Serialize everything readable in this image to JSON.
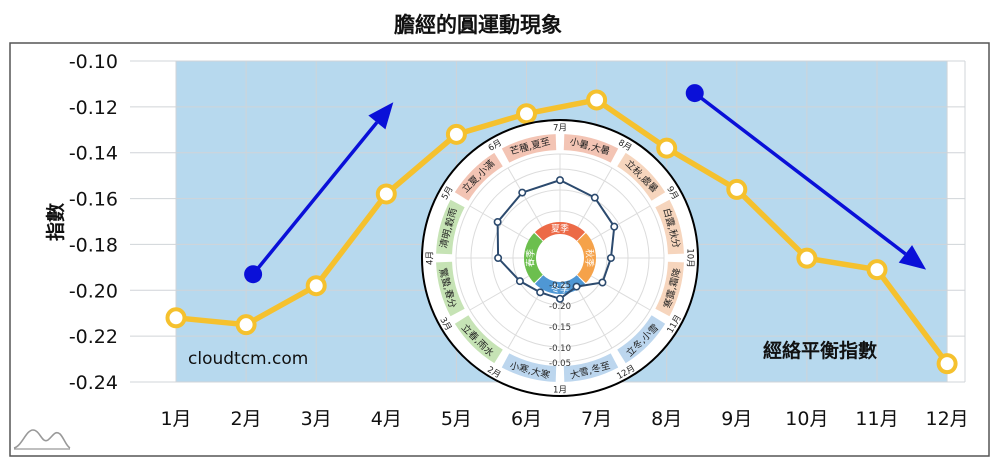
{
  "chart_data": {
    "type": "line",
    "title": "膽經的圓運動現象",
    "ylabel": "指數",
    "xlabel": "",
    "categories": [
      "1月",
      "2月",
      "3月",
      "4月",
      "5月",
      "6月",
      "7月",
      "8月",
      "9月",
      "10月",
      "11月",
      "12月"
    ],
    "ylim": [
      -0.24,
      -0.1
    ],
    "yticks": [
      -0.1,
      -0.12,
      -0.14,
      -0.16,
      -0.18,
      -0.2,
      -0.22,
      -0.24
    ],
    "ytick_labels": [
      "-0.10",
      "-0.12",
      "-0.14",
      "-0.16",
      "-0.18",
      "-0.20",
      "-0.22",
      "-0.24"
    ],
    "grid": true,
    "series": [
      {
        "name": "",
        "color": "#f5c12e",
        "values": [
          -0.212,
          -0.215,
          -0.198,
          -0.158,
          -0.132,
          -0.123,
          -0.117,
          -0.138,
          -0.156,
          -0.186,
          -0.191,
          -0.232
        ]
      }
    ],
    "band_color": "#b7d9ee",
    "arrows": [
      {
        "color": "#0a10d8",
        "from": {
          "x": 2.1,
          "y": -0.193
        },
        "to": {
          "x": 4.1,
          "y": -0.118
        }
      },
      {
        "color": "#0a10d8",
        "from": {
          "x": 8.4,
          "y": -0.114
        },
        "to": {
          "x": 11.7,
          "y": -0.191
        }
      }
    ],
    "annotations": {
      "watermark": "cloudtcm.com",
      "series_label": "經絡平衡指數"
    },
    "inset": {
      "type": "radar",
      "month_labels": [
        "1月",
        "2月",
        "3月",
        "4月",
        "5月",
        "6月",
        "7月",
        "8月",
        "9月",
        "10月",
        "11月",
        "12月"
      ],
      "radial_ticks": [
        "-0.25",
        "-0.20",
        "-0.15",
        "-0.10",
        "-0.05"
      ],
      "solar_terms": [
        "小寒,大寒",
        "立春,雨水",
        "驚蟄,春分",
        "清明,穀雨",
        "立夏,小滿",
        "芒種,夏至",
        "小暑,大暑",
        "立秋,處暑",
        "白露,秋分",
        "寒露,霜降",
        "立冬,小雪",
        "大雪,冬至"
      ],
      "solar_term_colors": [
        "#bcd6ee",
        "#c6e3b5",
        "#c6e3b5",
        "#c6e3b5",
        "#f3c4b4",
        "#f3c4b4",
        "#f3c4b4",
        "#f6d5bd",
        "#f6d5bd",
        "#f6d5bd",
        "#bcd6ee",
        "#bcd6ee"
      ],
      "seasons": [
        "夏季",
        "秋季",
        "冬季",
        "春季"
      ],
      "season_colors": [
        "#ec6a47",
        "#f5a24a",
        "#4f97d4",
        "#6cbf4e"
      ]
    }
  }
}
